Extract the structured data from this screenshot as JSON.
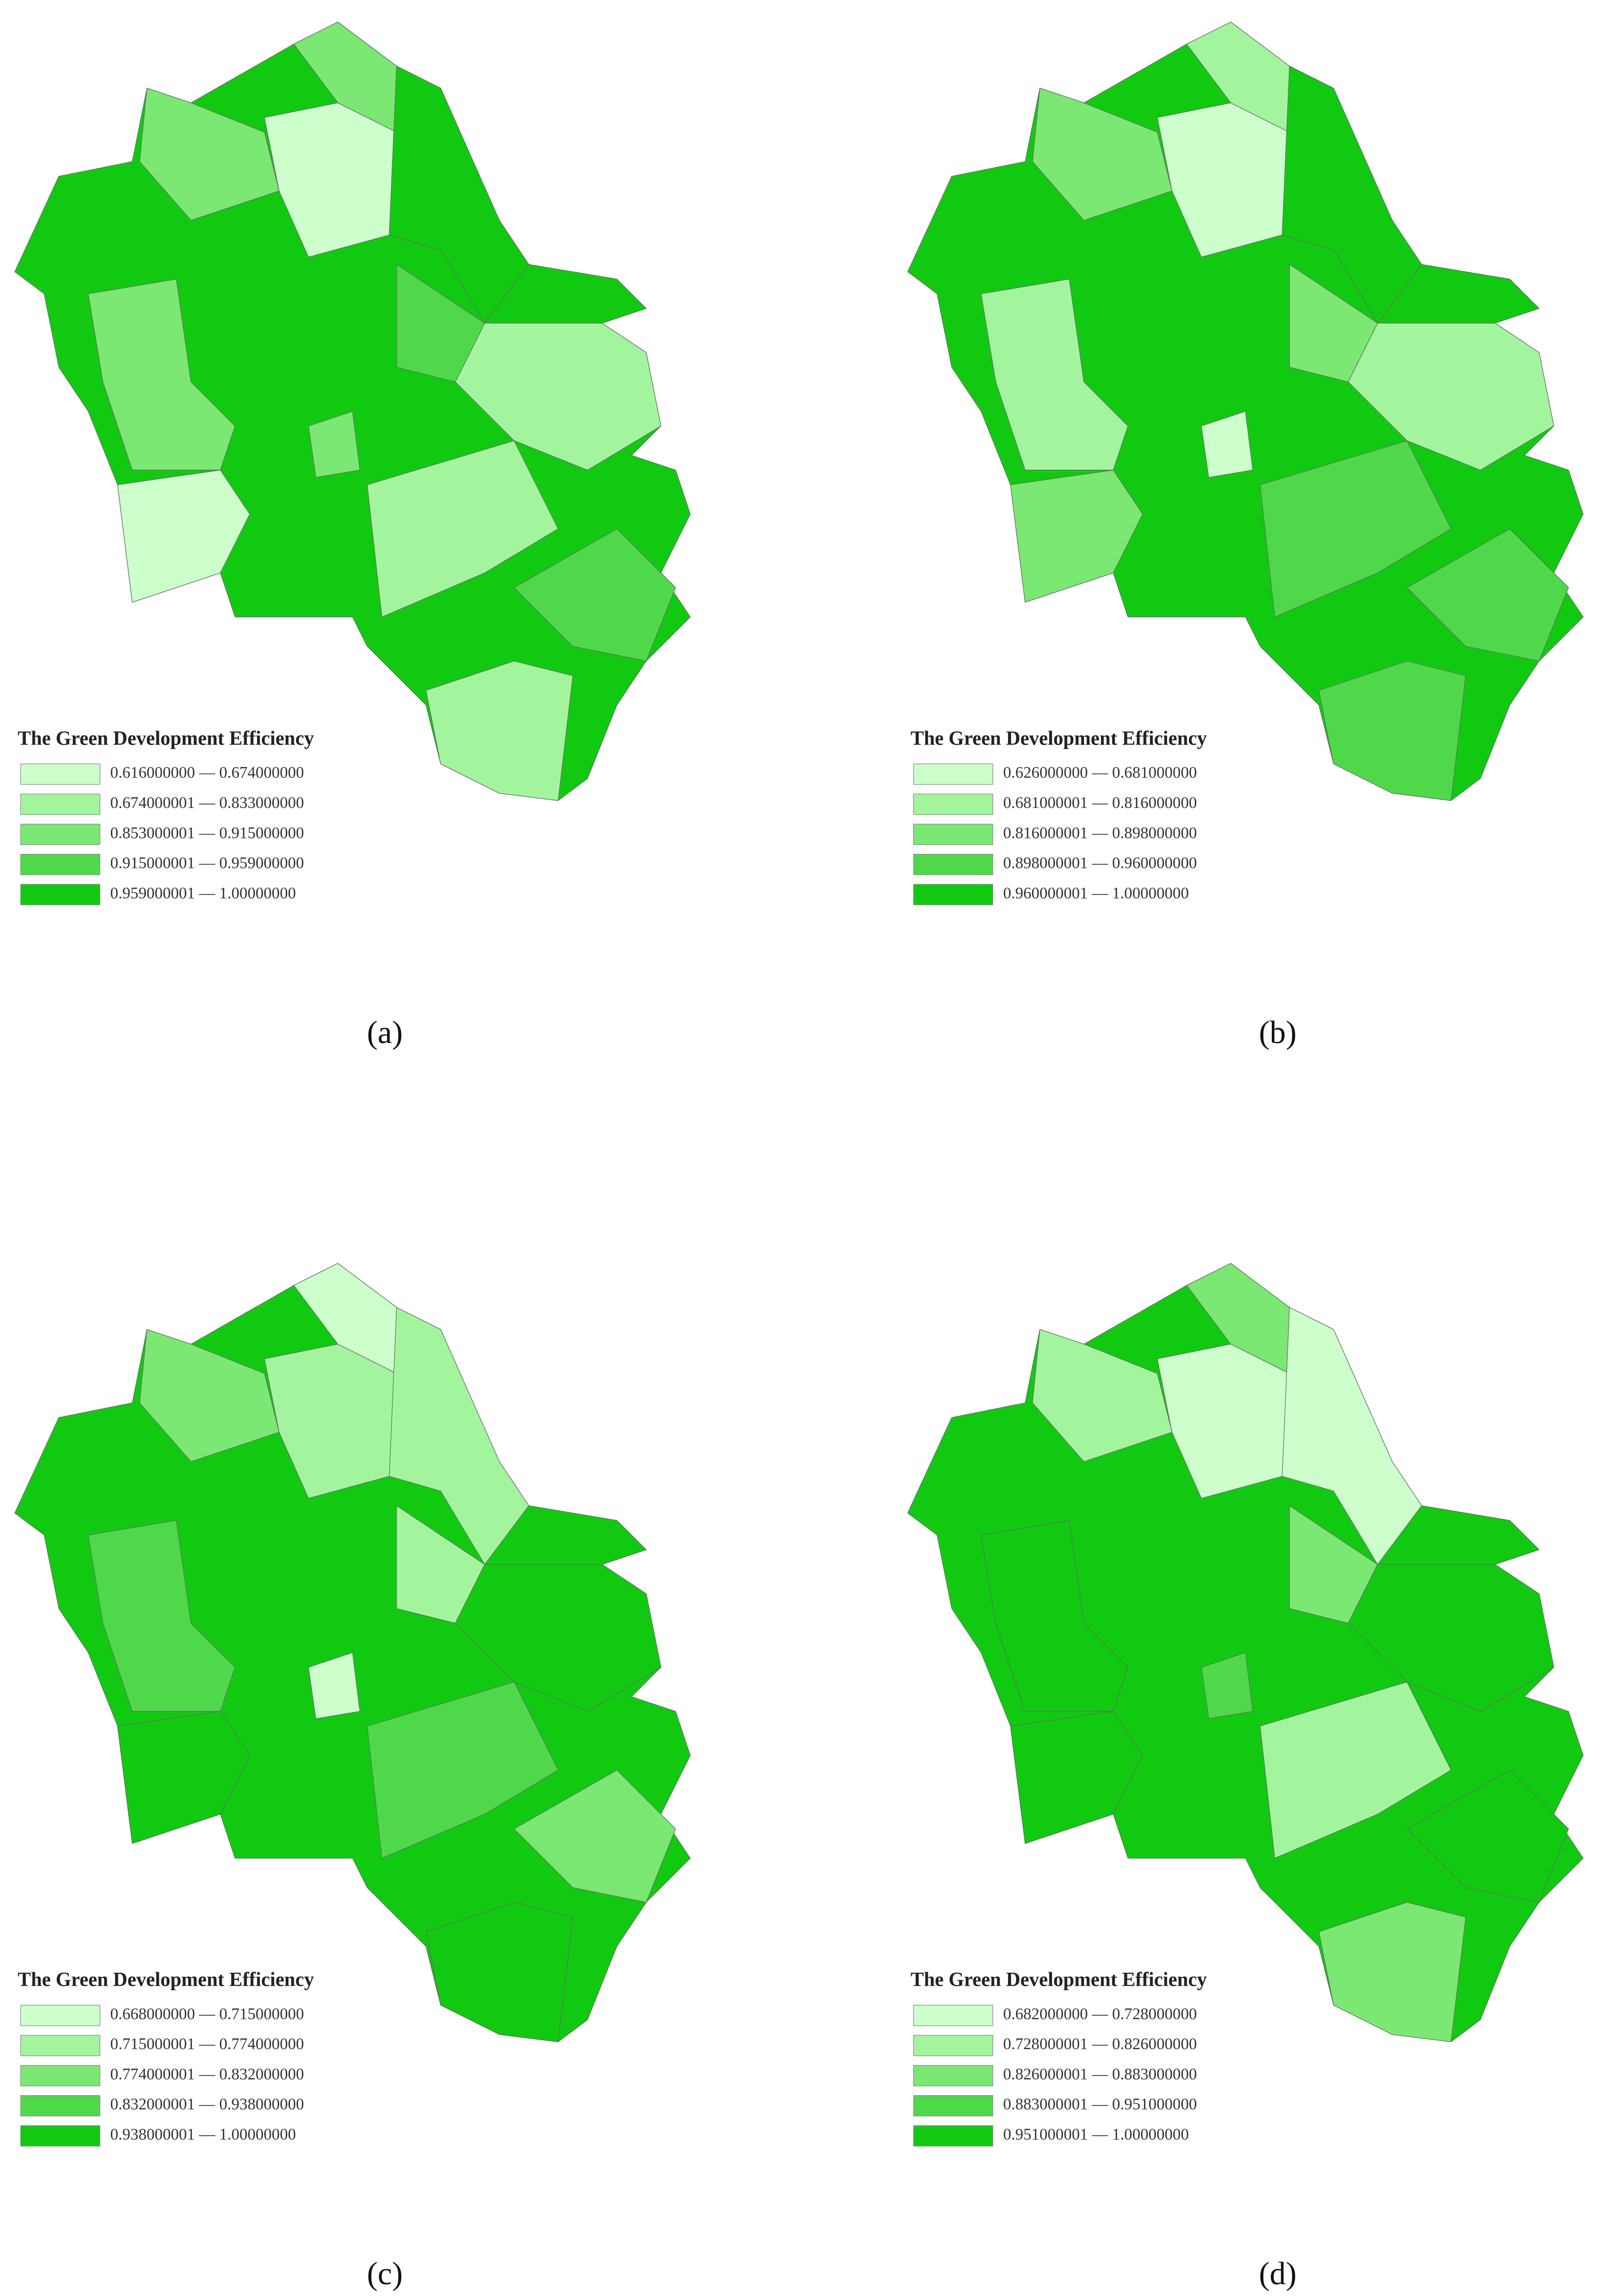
{
  "maps": [
    {
      "label": "(a)",
      "legend": {
        "title": "The Green Development Efficiency",
        "items": [
          "0.616000000 — 0.674000000",
          "0.674000001 — 0.833000000",
          "0.853000001 — 0.915000000",
          "0.915000001 — 0.959000000",
          "0.959000001 — 1.00000000"
        ],
        "colors": [
          "#ccffcc",
          "#a3f59d",
          "#7ae872",
          "#4fd94a",
          "#12c912"
        ]
      }
    },
    {
      "label": "(b)",
      "legend": {
        "title": "The Green Development Efficiency",
        "items": [
          "0.626000000 — 0.681000000",
          "0.681000001 — 0.816000000",
          "0.816000001 — 0.898000000",
          "0.898000001 — 0.960000000",
          "0.960000001 — 1.00000000"
        ],
        "colors": [
          "#ccffcc",
          "#a3f59d",
          "#7ae872",
          "#4fd94a",
          "#12c912"
        ]
      }
    },
    {
      "label": "(c)",
      "legend": {
        "title": "The Green Development Efficiency",
        "items": [
          "0.668000000 — 0.715000000",
          "0.715000001 — 0.774000000",
          "0.774000001 — 0.832000000",
          "0.832000001 — 0.938000000",
          "0.938000001 — 1.00000000"
        ],
        "colors": [
          "#ccffcc",
          "#a3f59d",
          "#7ae872",
          "#4fd94a",
          "#12c912"
        ]
      }
    },
    {
      "label": "(d)",
      "legend": {
        "title": "The Green Development Efficiency",
        "items": [
          "0.682000000 — 0.728000000",
          "0.728000001 — 0.826000000",
          "0.826000001 — 0.883000000",
          "0.883000001 — 0.951000000",
          "0.951000001 — 1.00000000"
        ],
        "colors": [
          "#ccffcc",
          "#a3f59d",
          "#7ae872",
          "#4fd94a",
          "#12c912"
        ]
      }
    }
  ]
}
